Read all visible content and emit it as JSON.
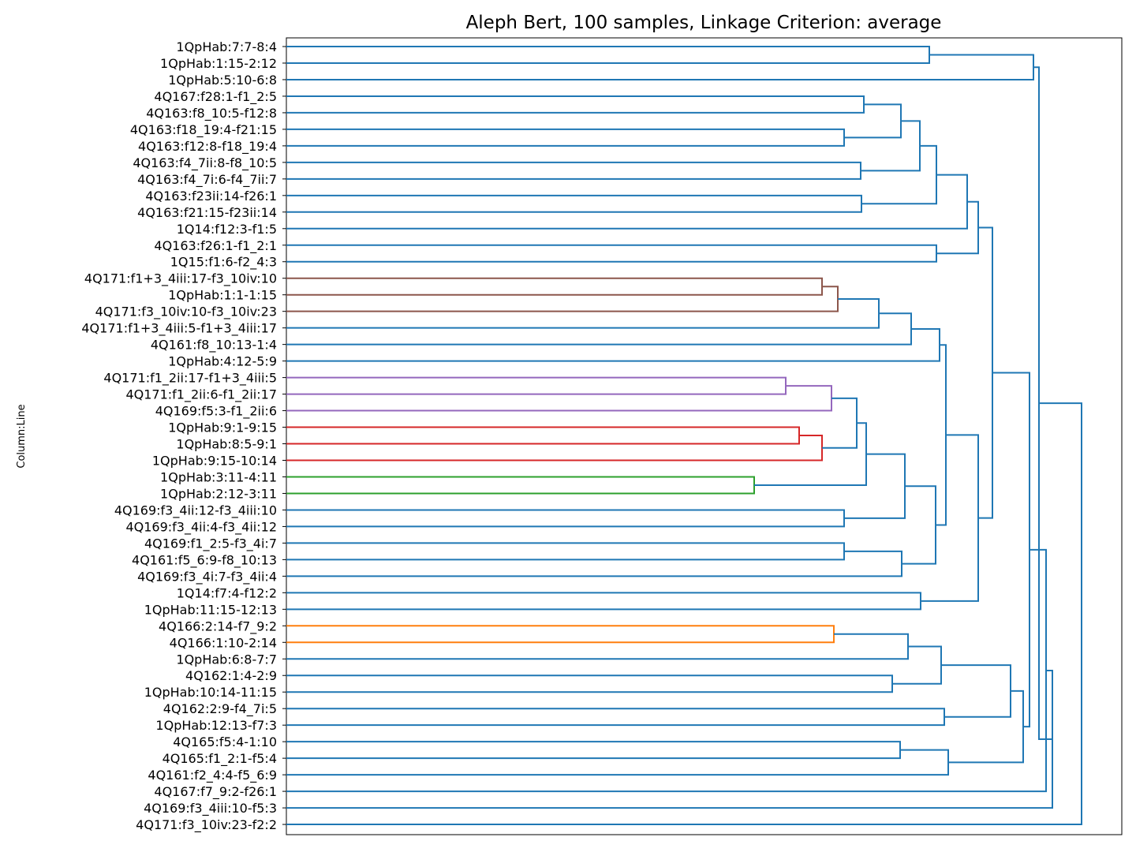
{
  "title": "Aleph Bert, 100 samples, Linkage Criterion: average",
  "ylabel": "Column:Line",
  "colors": {
    "default": "#1f77b4",
    "brown": "#8c564b",
    "purple": "#9467bd",
    "red": "#d62728",
    "green": "#2ca02c",
    "orange": "#ff7f0e"
  },
  "leaves": [
    "1QpHab:7:7-8:4",
    "1QpHab:1:15-2:12",
    "1QpHab:5:10-6:8",
    "4Q167:f28:1-f1_2:5",
    "4Q163:f8_10:5-f12:8",
    "4Q163:f18_19:4-f21:15",
    "4Q163:f12:8-f18_19:4",
    "4Q163:f4_7ii:8-f8_10:5",
    "4Q163:f4_7i:6-f4_7ii:7",
    "4Q163:f23ii:14-f26:1",
    "4Q163:f21:15-f23ii:14",
    "1Q14:f12:3-f1:5",
    "4Q163:f26:1-f1_2:1",
    "1Q15:f1:6-f2_4:3",
    "4Q171:f1+3_4iii:17-f3_10iv:10",
    "1QpHab:1:1-1:15",
    "4Q171:f3_10iv:10-f3_10iv:23",
    "4Q171:f1+3_4iii:5-f1+3_4iii:17",
    "4Q161:f8_10:13-1:4",
    "1QpHab:4:12-5:9",
    "4Q171:f1_2ii:17-f1+3_4iii:5",
    "4Q171:f1_2ii:6-f1_2ii:17",
    "4Q169:f5:3-f1_2ii:6",
    "1QpHab:9:1-9:15",
    "1QpHab:8:5-9:1",
    "1QpHab:9:15-10:14",
    "1QpHab:3:11-4:11",
    "1QpHab:2:12-3:11",
    "4Q169:f3_4ii:12-f3_4iii:10",
    "4Q169:f3_4ii:4-f3_4ii:12",
    "4Q169:f1_2:5-f3_4i:7",
    "4Q161:f5_6:9-f8_10:13",
    "4Q169:f3_4i:7-f3_4ii:4",
    "1Q14:f7:4-f12:2",
    "1QpHab:11:15-12:13",
    "4Q166:2:14-f7_9:2",
    "4Q166:1:10-2:14",
    "1QpHab:6:8-7:7",
    "4Q162:1:4-2:9",
    "1QpHab:10:14-11:15",
    "4Q162:2:9-f4_7i:5",
    "1QpHab:12:13-f7:3",
    "4Q165:f5:4-1:10",
    "4Q165:f1_2:1-f5:4",
    "4Q161:f2_4:4-f5_6:9",
    "4Q167:f7_9:2-f26:1",
    "4Q169:f3_4iii:10-f5:3",
    "4Q171:f3_10iv:23-f2:2"
  ],
  "merges": [
    {
      "a": "L0",
      "b": "L1",
      "h": 1178,
      "c": "default"
    },
    {
      "a": "N0",
      "b": "L2",
      "h": 1310,
      "c": "default"
    },
    {
      "a": "L3",
      "b": "L4",
      "h": 1095,
      "c": "default"
    },
    {
      "a": "L5",
      "b": "L6",
      "h": 1070,
      "c": "default"
    },
    {
      "a": "N2",
      "b": "N3",
      "h": 1142,
      "c": "default"
    },
    {
      "a": "L7",
      "b": "L8",
      "h": 1091,
      "c": "default"
    },
    {
      "a": "N4",
      "b": "N5",
      "h": 1166,
      "c": "default"
    },
    {
      "a": "L9",
      "b": "L10",
      "h": 1092,
      "c": "default"
    },
    {
      "a": "N6",
      "b": "N7",
      "h": 1187,
      "c": "default"
    },
    {
      "a": "N8",
      "b": "L11",
      "h": 1226,
      "c": "default"
    },
    {
      "a": "L12",
      "b": "L13",
      "h": 1187,
      "c": "default"
    },
    {
      "a": "N9",
      "b": "N10",
      "h": 1240,
      "c": "default"
    },
    {
      "a": "L14",
      "b": "L15",
      "h": 1042,
      "c": "brown"
    },
    {
      "a": "N12",
      "b": "L16",
      "h": 1062,
      "c": "brown"
    },
    {
      "a": "N13",
      "b": "L17",
      "h": 1114,
      "c": "default"
    },
    {
      "a": "N14",
      "b": "L18",
      "h": 1155,
      "c": "default"
    },
    {
      "a": "N15",
      "b": "L19",
      "h": 1191,
      "c": "default"
    },
    {
      "a": "L20",
      "b": "L21",
      "h": 996,
      "c": "purple"
    },
    {
      "a": "N17",
      "b": "L22",
      "h": 1054,
      "c": "purple"
    },
    {
      "a": "L23",
      "b": "L24",
      "h": 1013,
      "c": "red"
    },
    {
      "a": "N19",
      "b": "L25",
      "h": 1042,
      "c": "red"
    },
    {
      "a": "N18",
      "b": "N20",
      "h": 1086,
      "c": "default"
    },
    {
      "a": "L26",
      "b": "L27",
      "h": 956,
      "c": "green"
    },
    {
      "a": "N21",
      "b": "N22",
      "h": 1098,
      "c": "default"
    },
    {
      "a": "L28",
      "b": "L29",
      "h": 1070,
      "c": "default"
    },
    {
      "a": "N23",
      "b": "N24",
      "h": 1147,
      "c": "default"
    },
    {
      "a": "L30",
      "b": "L31",
      "h": 1070,
      "c": "default"
    },
    {
      "a": "N26",
      "b": "L32",
      "h": 1143,
      "c": "default"
    },
    {
      "a": "N25",
      "b": "N27",
      "h": 1186,
      "c": "default"
    },
    {
      "a": "N16",
      "b": "N28",
      "h": 1199,
      "c": "default"
    },
    {
      "a": "L33",
      "b": "L34",
      "h": 1167,
      "c": "default"
    },
    {
      "a": "N29",
      "b": "N30",
      "h": 1240,
      "c": "default"
    },
    {
      "a": "N11",
      "b": "N31",
      "h": 1258,
      "c": "default"
    },
    {
      "a": "L35",
      "b": "L36",
      "h": 1057,
      "c": "orange"
    },
    {
      "a": "N33",
      "b": "L37",
      "h": 1151,
      "c": "default"
    },
    {
      "a": "L38",
      "b": "L39",
      "h": 1131,
      "c": "default"
    },
    {
      "a": "N34",
      "b": "N35",
      "h": 1193,
      "c": "default"
    },
    {
      "a": "L40",
      "b": "L41",
      "h": 1197,
      "c": "default"
    },
    {
      "a": "N36",
      "b": "N37",
      "h": 1281,
      "c": "default"
    },
    {
      "a": "L42",
      "b": "L43",
      "h": 1141,
      "c": "default"
    },
    {
      "a": "N39",
      "b": "L44",
      "h": 1202,
      "c": "default"
    },
    {
      "a": "N38",
      "b": "N40",
      "h": 1297,
      "c": "default"
    },
    {
      "a": "N32",
      "b": "N41",
      "h": 1305,
      "c": "default"
    },
    {
      "a": "N42",
      "b": "L45",
      "h": 1326,
      "c": "default"
    },
    {
      "a": "N43",
      "b": "L46",
      "h": 1334,
      "c": "default"
    },
    {
      "a": "N1",
      "b": "N44",
      "h": 1317,
      "c": "default"
    },
    {
      "a": "N45",
      "b": "L47",
      "h": 1371,
      "c": "default"
    }
  ]
}
